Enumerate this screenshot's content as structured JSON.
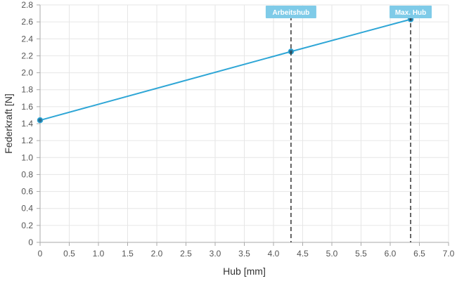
{
  "chart_data": {
    "type": "line",
    "xlabel": "Hub [mm]",
    "ylabel": "Federkraft [N]",
    "xlim": [
      0,
      7.0
    ],
    "ylim": [
      0,
      2.8
    ],
    "x_ticks": [
      "0",
      "0.5",
      "1.0",
      "1.5",
      "2.0",
      "2.5",
      "3.0",
      "3.5",
      "4.0",
      "4.5",
      "5.0",
      "5.5",
      "6.0",
      "6.5",
      "7.0"
    ],
    "y_ticks": [
      "0",
      "0.2",
      "0.4",
      "0.6",
      "0.8",
      "1.0",
      "1.2",
      "1.4",
      "1.6",
      "1.8",
      "2.0",
      "2.2",
      "2.4",
      "2.6",
      "2.8"
    ],
    "grid": true,
    "legend": "none",
    "series": [
      {
        "x": [
          0,
          4.3,
          6.35
        ],
        "y": [
          1.44,
          2.25,
          2.63
        ],
        "color": "#2ea6d6"
      }
    ],
    "markers": [
      {
        "label": "Arbeitshub",
        "x": 4.3,
        "y": 2.25
      },
      {
        "label": "Max. Hub",
        "x": 6.35,
        "y": 2.63
      }
    ],
    "colors": {
      "line": "#2ea6d6",
      "point": "#2a6f93",
      "label_bg": "#7fcbe8",
      "grid": "#e6e6e6",
      "axis": "#aaaaaa",
      "dash": "#333333"
    }
  }
}
